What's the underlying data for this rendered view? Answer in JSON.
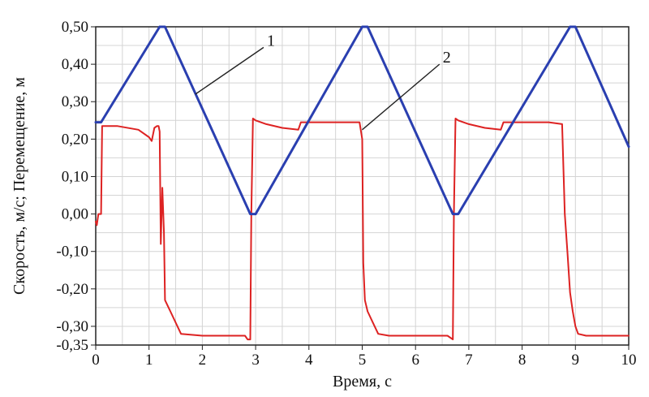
{
  "chart_data": {
    "type": "line",
    "title": "",
    "xlabel": "Время, с",
    "ylabel": "Скорость, м/с; Перемещение, м",
    "xlim": [
      0,
      10
    ],
    "ylim": [
      -0.35,
      0.5
    ],
    "grid": true,
    "x_ticks": [
      "0",
      "1",
      "2",
      "3",
      "4",
      "5",
      "6",
      "7",
      "8",
      "9",
      "10"
    ],
    "x_tick_values": [
      0,
      1,
      2,
      3,
      4,
      5,
      6,
      7,
      8,
      9,
      10
    ],
    "y_ticks": [
      "0,50",
      "0,40",
      "0,30",
      "0,20",
      "0,10",
      "0,00",
      "-0,10",
      "-0,20",
      "-0,30",
      "-0,35"
    ],
    "y_tick_values": [
      0.5,
      0.4,
      0.3,
      0.2,
      0.1,
      0.0,
      -0.1,
      -0.2,
      -0.3,
      -0.35
    ],
    "series": [
      {
        "label": "1",
        "color": "#2a3fb0",
        "x": [
          0.0,
          0.1,
          1.2,
          1.3,
          2.9,
          3.0,
          5.0,
          5.1,
          6.7,
          6.8,
          8.9,
          9.0,
          10.0
        ],
        "y": [
          0.245,
          0.245,
          0.5,
          0.5,
          0.0,
          0.0,
          0.5,
          0.5,
          0.0,
          0.0,
          0.5,
          0.5,
          0.18
        ]
      },
      {
        "label": "2",
        "color": "#dd2222",
        "x": [
          0.0,
          0.02,
          0.05,
          0.08,
          0.1,
          0.12,
          0.15,
          0.4,
          0.8,
          1.0,
          1.05,
          1.1,
          1.15,
          1.18,
          1.2,
          1.22,
          1.25,
          1.28,
          1.3,
          1.4,
          1.6,
          2.0,
          2.8,
          2.85,
          2.9,
          2.92,
          2.95,
          3.0,
          3.2,
          3.5,
          3.8,
          3.85,
          3.9,
          4.2,
          4.6,
          4.9,
          4.95,
          5.0,
          5.02,
          5.05,
          5.1,
          5.2,
          5.3,
          5.5,
          6.0,
          6.6,
          6.7,
          6.72,
          6.75,
          6.8,
          7.0,
          7.3,
          7.6,
          7.65,
          7.7,
          8.1,
          8.5,
          8.75,
          8.8,
          8.85,
          8.9,
          8.95,
          9.0,
          9.05,
          9.2,
          9.4,
          10.0
        ],
        "y": [
          -0.02,
          -0.03,
          0.0,
          0.0,
          0.0,
          0.235,
          0.235,
          0.235,
          0.225,
          0.205,
          0.195,
          0.23,
          0.235,
          0.235,
          0.22,
          -0.08,
          0.07,
          -0.05,
          -0.23,
          -0.26,
          -0.32,
          -0.325,
          -0.325,
          -0.335,
          -0.335,
          0.0,
          0.255,
          0.25,
          0.24,
          0.23,
          0.225,
          0.245,
          0.245,
          0.245,
          0.245,
          0.245,
          0.245,
          0.2,
          -0.13,
          -0.23,
          -0.26,
          -0.29,
          -0.32,
          -0.325,
          -0.325,
          -0.325,
          -0.335,
          0.0,
          0.255,
          0.25,
          0.24,
          0.23,
          0.225,
          0.245,
          0.245,
          0.245,
          0.245,
          0.24,
          0.0,
          -0.1,
          -0.21,
          -0.26,
          -0.3,
          -0.32,
          -0.325,
          -0.325,
          -0.325
        ]
      }
    ]
  }
}
